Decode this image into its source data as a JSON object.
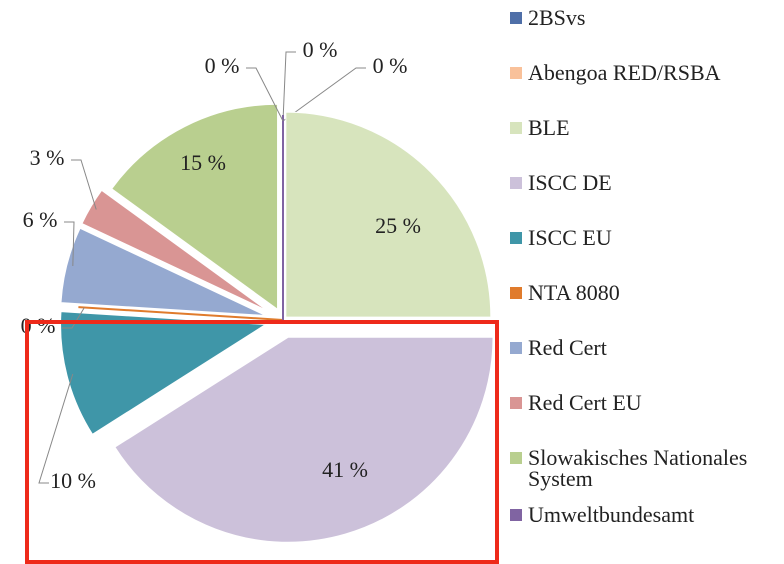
{
  "chart_data": {
    "type": "pie",
    "categories": [
      "2BSvs",
      "Abengoa RED/RSBA",
      "BLE",
      "ISCC DE",
      "ISCC EU",
      "NTA 8080",
      "Red Cert",
      "Red Cert EU",
      "Slowakisches Nationales System",
      "Umweltbundesamt"
    ],
    "values": [
      0,
      0,
      25,
      41,
      10,
      0,
      6,
      3,
      15,
      0
    ],
    "value_labels": [
      "0 %",
      "0 %",
      "25 %",
      "41 %",
      "10 %",
      "0 %",
      "6 %",
      "3 %",
      "15 %",
      "0 %"
    ],
    "colors": [
      "#4f6fa8",
      "#f9c19a",
      "#d7e4bd",
      "#ccc1da",
      "#3f96a8",
      "#e07b2c",
      "#95a9d0",
      "#d99594",
      "#b9cf8f",
      "#8064a2"
    ],
    "legend": "right"
  }
}
